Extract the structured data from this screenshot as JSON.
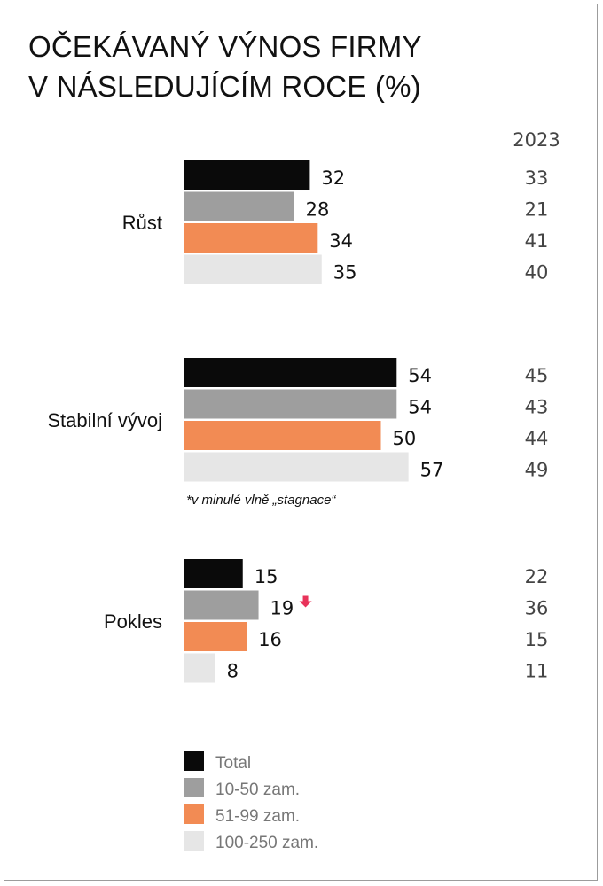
{
  "title_line1": "OČEKÁVANÝ VÝNOS FIRMY",
  "title_line2": "V NÁSLEDUJÍCÍM ROCE (%)",
  "chart_data": {
    "type": "bar",
    "orientation": "horizontal",
    "title": "OČEKÁVANÝ VÝNOS FIRMY V NÁSLEDUJÍCÍM ROCE (%)",
    "categories": [
      "Růst",
      "Stabilní vývoj",
      "Pokles"
    ],
    "series": [
      {
        "name": "Total",
        "color": "#0a0a0a",
        "values": [
          32,
          54,
          15
        ]
      },
      {
        "name": "10-50 zam.",
        "color": "#9e9e9e",
        "values": [
          28,
          54,
          19
        ]
      },
      {
        "name": "51-99 zam.",
        "color": "#f28b54",
        "values": [
          34,
          50,
          16
        ]
      },
      {
        "name": "100-250 zam.",
        "color": "#e6e6e6",
        "values": [
          35,
          57,
          8
        ]
      }
    ],
    "comparison_header": "2023",
    "comparison_values": [
      [
        33,
        21,
        41,
        40
      ],
      [
        45,
        43,
        44,
        49
      ],
      [
        22,
        36,
        15,
        11
      ]
    ],
    "annotations": [
      {
        "category": "Stabilní vývoj",
        "text": "*v minulé vlně „stagnace“"
      },
      {
        "category": "Pokles",
        "series": "10-50 zam.",
        "marker": "down-arrow",
        "color": "#e8335a"
      }
    ],
    "xlim": [
      0,
      60
    ]
  }
}
